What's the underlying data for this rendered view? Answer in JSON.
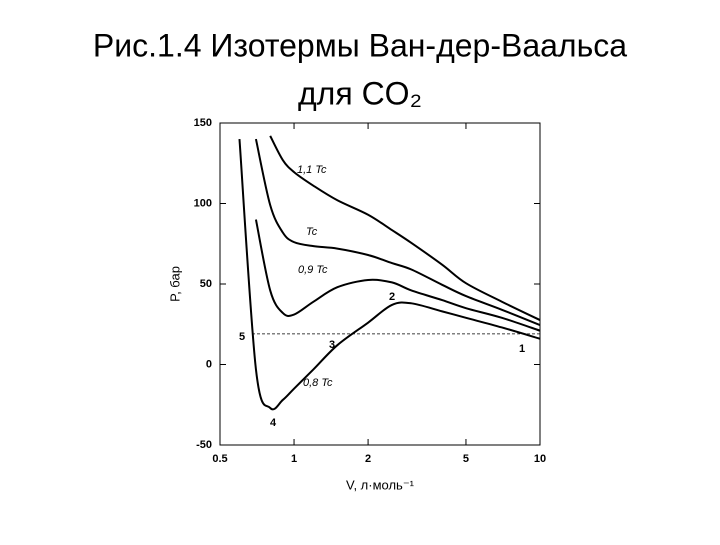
{
  "title_lines": [
    "Рис.1.4 Изотермы Ван-дер-Ваальса",
    "для CO₂"
  ],
  "chart_data": {
    "type": "line",
    "x_label": "V, л·моль⁻¹",
    "y_label": "P, бар",
    "xscale": "log",
    "x": [
      0.6,
      0.7,
      0.8,
      0.9,
      1,
      1.2,
      1.5,
      2,
      2.5,
      3,
      4,
      5,
      7,
      10
    ],
    "series": [
      {
        "name": "1,1 Tc",
        "color": "#000000",
        "values": [
          null,
          null,
          142,
          127,
          119.5,
          111,
          102,
          93,
          83.5,
          75.5,
          62,
          50.5,
          39,
          27.6
        ]
      },
      {
        "name": "Tc",
        "color": "#000000",
        "values": [
          null,
          140,
          99,
          82,
          76,
          73.5,
          72,
          68,
          63,
          59,
          49.5,
          42.5,
          34,
          24.5
        ]
      },
      {
        "name": "0,9 Tc",
        "color": "#000000",
        "values": [
          null,
          90,
          46,
          32,
          31,
          39,
          48,
          52.5,
          51,
          46,
          40,
          35,
          29,
          21
        ]
      },
      {
        "name": "0,8 Tc",
        "color": "#000000",
        "values": [
          140,
          -3,
          -27,
          -22,
          -15,
          -3,
          12,
          26,
          37,
          38,
          33,
          29,
          23,
          16
        ]
      }
    ],
    "reference_line": {
      "value": 19,
      "style": "dashed"
    },
    "point_labels": [
      "1",
      "2",
      "3",
      "4",
      "5"
    ],
    "xlim": [
      0.5,
      10
    ],
    "xticks": [
      0.5,
      1,
      2,
      5,
      10
    ],
    "ylim": [
      -50,
      150
    ],
    "yticks": [
      -50,
      0,
      50,
      100,
      150
    ],
    "grid": false
  }
}
